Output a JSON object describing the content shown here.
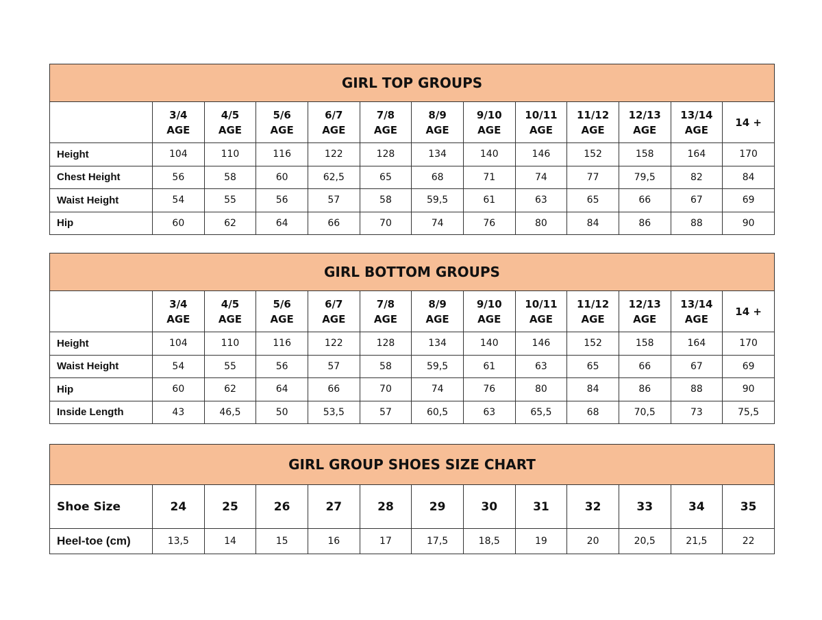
{
  "colors": {
    "header_bg": "#f7be96",
    "border": "#333333"
  },
  "tables": [
    {
      "title": "GIRL TOP GROUPS",
      "columns": [
        [
          "3/4",
          "AGE"
        ],
        [
          "4/5",
          "AGE"
        ],
        [
          "5/6",
          "AGE"
        ],
        [
          "6/7",
          "AGE"
        ],
        [
          "7/8",
          "AGE"
        ],
        [
          "8/9",
          "AGE"
        ],
        [
          "9/10",
          "AGE"
        ],
        [
          "10/11",
          "AGE"
        ],
        [
          "11/12",
          "AGE"
        ],
        [
          "12/13",
          "AGE"
        ],
        [
          "13/14",
          "AGE"
        ],
        [
          "14 +"
        ]
      ],
      "rows": [
        {
          "label": "Height",
          "values": [
            "104",
            "110",
            "116",
            "122",
            "128",
            "134",
            "140",
            "146",
            "152",
            "158",
            "164",
            "170"
          ]
        },
        {
          "label": "Chest Height",
          "values": [
            "56",
            "58",
            "60",
            "62,5",
            "65",
            "68",
            "71",
            "74",
            "77",
            "79,5",
            "82",
            "84"
          ]
        },
        {
          "label": "Waist Height",
          "values": [
            "54",
            "55",
            "56",
            "57",
            "58",
            "59,5",
            "61",
            "63",
            "65",
            "66",
            "67",
            "69"
          ]
        },
        {
          "label": "Hip",
          "values": [
            "60",
            "62",
            "64",
            "66",
            "70",
            "74",
            "76",
            "80",
            "84",
            "86",
            "88",
            "90"
          ]
        }
      ]
    },
    {
      "title": "GIRL BOTTOM GROUPS",
      "columns": [
        [
          "3/4",
          "AGE"
        ],
        [
          "4/5",
          "AGE"
        ],
        [
          "5/6",
          "AGE"
        ],
        [
          "6/7",
          "AGE"
        ],
        [
          "7/8",
          "AGE"
        ],
        [
          "8/9",
          "AGE"
        ],
        [
          "9/10",
          "AGE"
        ],
        [
          "10/11",
          "AGE"
        ],
        [
          "11/12",
          "AGE"
        ],
        [
          "12/13",
          "AGE"
        ],
        [
          "13/14",
          "AGE"
        ],
        [
          "14 +"
        ]
      ],
      "rows": [
        {
          "label": "Height",
          "values": [
            "104",
            "110",
            "116",
            "122",
            "128",
            "134",
            "140",
            "146",
            "152",
            "158",
            "164",
            "170"
          ]
        },
        {
          "label": "Waist Height",
          "values": [
            "54",
            "55",
            "56",
            "57",
            "58",
            "59,5",
            "61",
            "63",
            "65",
            "66",
            "67",
            "69"
          ]
        },
        {
          "label": "Hip",
          "values": [
            "60",
            "62",
            "64",
            "66",
            "70",
            "74",
            "76",
            "80",
            "84",
            "86",
            "88",
            "90"
          ]
        },
        {
          "label": "Inside Length",
          "values": [
            "43",
            "46,5",
            "50",
            "53,5",
            "57",
            "60,5",
            "63",
            "65,5",
            "68",
            "70,5",
            "73",
            "75,5"
          ]
        }
      ]
    },
    {
      "title": "GIRL GROUP SHOES SIZE CHART",
      "header_label": "Shoe Size",
      "columns": [
        [
          "24"
        ],
        [
          "25"
        ],
        [
          "26"
        ],
        [
          "27"
        ],
        [
          "28"
        ],
        [
          "29"
        ],
        [
          "30"
        ],
        [
          "31"
        ],
        [
          "32"
        ],
        [
          "33"
        ],
        [
          "34"
        ],
        [
          "35"
        ]
      ],
      "rows": [
        {
          "label": "Heel-toe (cm)",
          "values": [
            "13,5",
            "14",
            "15",
            "16",
            "17",
            "17,5",
            "18,5",
            "19",
            "20",
            "20,5",
            "21,5",
            "22"
          ]
        }
      ]
    }
  ]
}
